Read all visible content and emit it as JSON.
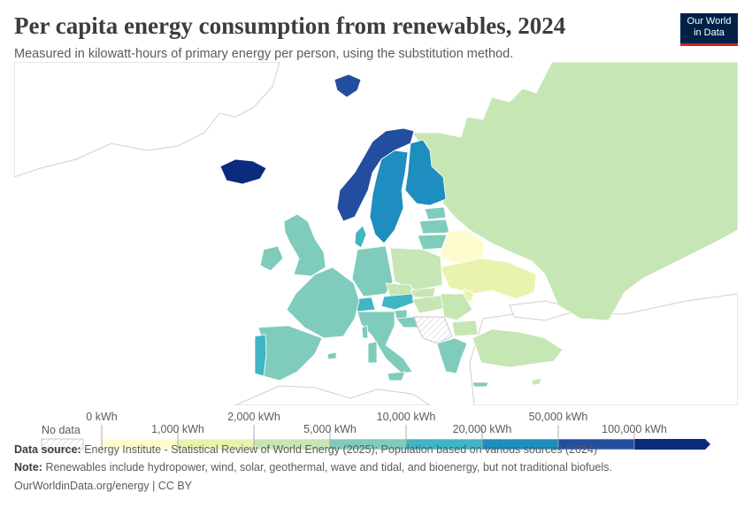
{
  "header": {
    "title": "Per capita energy consumption from renewables, 2024",
    "subtitle": "Measured in kilowatt-hours of primary energy per person, using the substitution method."
  },
  "logo": {
    "line1": "Our World",
    "line2": "in Data"
  },
  "map_data": {
    "bins": [
      "0 kWh",
      "1,000 kWh",
      "2,000 kWh",
      "5,000 kWh",
      "10,000 kWh",
      "20,000 kWh",
      "50,000 kWh",
      "100,000 kWh"
    ],
    "colors": [
      "#fdfcce",
      "#eaf3ae",
      "#c6e6b4",
      "#7fccbc",
      "#40b5c4",
      "#1e8dbf",
      "#234ea0",
      "#0b2b7c"
    ],
    "no_data_label": "No data",
    "country_bins": {
      "iceland": 7,
      "norway": 6,
      "sweden": 5,
      "finland": 5,
      "denmark": 4,
      "estonia": 3,
      "latvia": 3,
      "lithuania": 3,
      "belarus": 0,
      "ukraine": 1,
      "moldova": 1,
      "russia": 2,
      "uk": 3,
      "ireland": 3,
      "france": 3,
      "spain": 3,
      "portugal": 4,
      "germany": 3,
      "poland": 2,
      "czechia": 2,
      "austria": 4,
      "switzerland": 4,
      "italy": 3,
      "romania": 2,
      "bulgaria": 2,
      "hungary": 2,
      "slovakia": 2,
      "slovenia": 3,
      "croatia": 3,
      "greece": 3,
      "turkey": 2,
      "svalbard": 6,
      "crete": 3,
      "cyprus": 2
    }
  },
  "footer": {
    "source_label": "Data source:",
    "source_text": "Energy Institute - Statistical Review of World Energy (2025); Population based on various sources (2024)",
    "note_label": "Note:",
    "note_text": "Renewables include hydropower, wind, solar, geothermal, wave and tidal, and bioenergy, but not traditional biofuels.",
    "credit": "OurWorldinData.org/energy | CC BY"
  }
}
